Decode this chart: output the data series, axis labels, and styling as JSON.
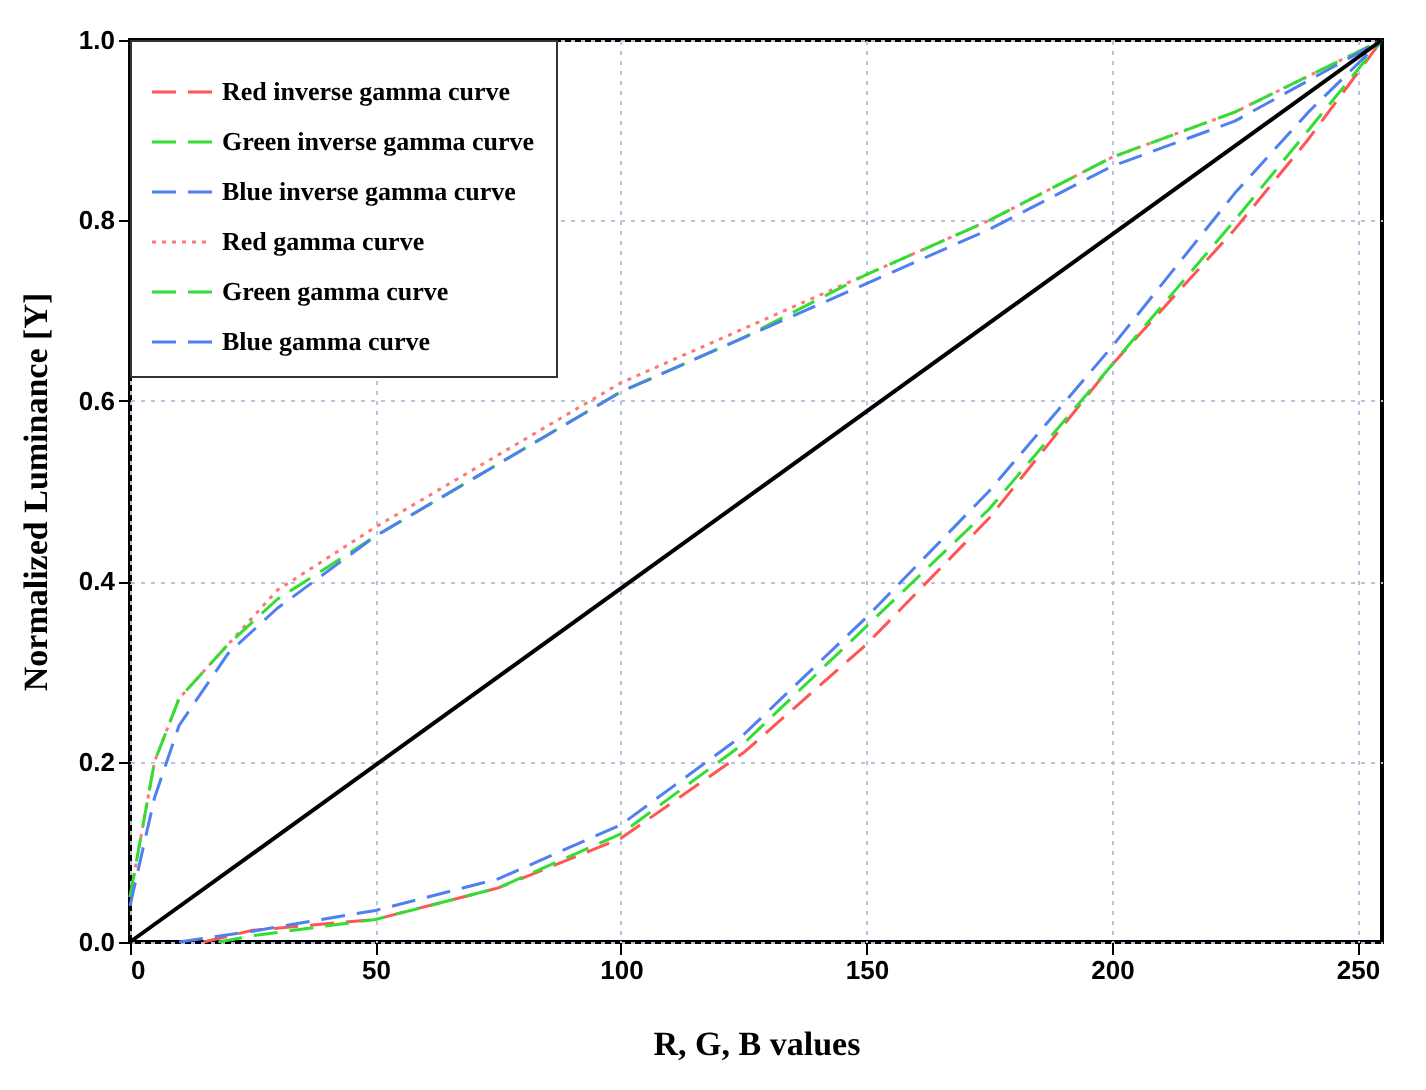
{
  "chart_data": {
    "type": "line",
    "xlabel": "R, G, B values",
    "ylabel": "Normalized Luminance [Y]",
    "xlim": [
      0,
      255
    ],
    "ylim": [
      0,
      1
    ],
    "xticks": [
      0,
      50,
      100,
      150,
      200,
      250
    ],
    "yticks": [
      {
        "value": 0,
        "label": "0.0"
      },
      0.2,
      0.4,
      0.6,
      0.8,
      {
        "value": 1,
        "label": "1.0"
      }
    ],
    "grid": true,
    "legend": "top left",
    "marker": "none",
    "series": [
      {
        "name": "Red inverse gamma curve",
        "color": "#ff5555",
        "line_style": "dashed",
        "x": [
          15,
          25,
          50,
          75,
          100,
          125,
          150,
          175,
          200,
          225,
          240,
          255
        ],
        "values": [
          0,
          0.013,
          0.025,
          0.06,
          0.115,
          0.21,
          0.33,
          0.47,
          0.64,
          0.79,
          0.89,
          1.0
        ]
      },
      {
        "name": "Green inverse gamma curve",
        "color": "#33dd33",
        "line_style": "dashed",
        "x": [
          18,
          25,
          50,
          75,
          100,
          125,
          150,
          175,
          200,
          225,
          240,
          255
        ],
        "values": [
          0,
          0.007,
          0.025,
          0.06,
          0.12,
          0.22,
          0.35,
          0.48,
          0.64,
          0.8,
          0.9,
          1.0
        ]
      },
      {
        "name": "Blue inverse gamma curve",
        "color": "#4f7ff0",
        "line_style": "dashed",
        "x": [
          10,
          25,
          50,
          75,
          100,
          125,
          150,
          175,
          200,
          225,
          240,
          255
        ],
        "values": [
          0,
          0.012,
          0.035,
          0.07,
          0.13,
          0.23,
          0.36,
          0.5,
          0.66,
          0.83,
          0.92,
          1.0
        ]
      },
      {
        "name": "Red gamma curve",
        "color": "#ff7777",
        "line_style": "dotted",
        "x": [
          0,
          5,
          10,
          20,
          30,
          50,
          75,
          100,
          125,
          150,
          175,
          200,
          225,
          255
        ],
        "values": [
          0.05,
          0.2,
          0.27,
          0.33,
          0.39,
          0.46,
          0.54,
          0.62,
          0.68,
          0.74,
          0.8,
          0.87,
          0.92,
          1.0
        ]
      },
      {
        "name": "Green gamma curve",
        "color": "#33dd33",
        "line_style": "dashed",
        "x": [
          0,
          5,
          10,
          20,
          30,
          50,
          75,
          100,
          125,
          150,
          175,
          200,
          225,
          255
        ],
        "values": [
          0.05,
          0.2,
          0.27,
          0.33,
          0.38,
          0.45,
          0.53,
          0.61,
          0.67,
          0.74,
          0.8,
          0.87,
          0.92,
          1.0
        ]
      },
      {
        "name": "Blue gamma curve",
        "color": "#4f7ff0",
        "line_style": "dashed",
        "x": [
          0,
          5,
          10,
          20,
          30,
          50,
          75,
          100,
          125,
          150,
          175,
          200,
          225,
          255
        ],
        "values": [
          0.04,
          0.16,
          0.24,
          0.32,
          0.37,
          0.45,
          0.53,
          0.61,
          0.67,
          0.73,
          0.79,
          0.86,
          0.91,
          1.0
        ]
      },
      {
        "color": "#000000",
        "line_style": "solid",
        "x": [
          0,
          255
        ],
        "values": [
          0,
          1
        ]
      }
    ]
  }
}
